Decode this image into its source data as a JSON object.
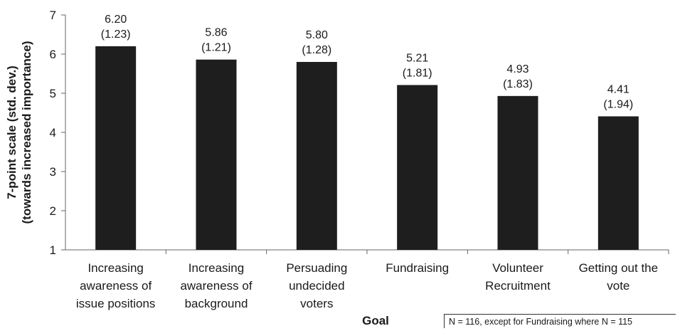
{
  "chart_data": {
    "type": "bar",
    "categories": [
      [
        "Increasing",
        "awareness of",
        "issue positions"
      ],
      [
        "Increasing",
        "awareness of",
        "background"
      ],
      [
        "Persuading",
        "undecided",
        "voters"
      ],
      [
        "Fundraising"
      ],
      [
        "Volunteer",
        "Recruitment"
      ],
      [
        "Getting out the",
        "vote"
      ]
    ],
    "values": [
      6.2,
      5.86,
      5.8,
      5.21,
      4.93,
      4.41
    ],
    "value_labels": [
      "6.20",
      "5.86",
      "5.80",
      "5.21",
      "4.93",
      "4.41"
    ],
    "std_dev_labels": [
      "(1.23)",
      "(1.21)",
      "(1.28)",
      "(1.81)",
      "(1.83)",
      "(1.94)"
    ],
    "xlabel": "Goal",
    "ylabel": [
      "7-point scale  (std. dev.)",
      "(towards increased importance)"
    ],
    "ylim": [
      1,
      7
    ],
    "yticks": [
      "1",
      "2",
      "3",
      "4",
      "5",
      "6",
      "7"
    ],
    "grid": false,
    "bar_color": "#1e1e1e"
  },
  "footnote": "N = 116, except for Fundraising where N = 115"
}
